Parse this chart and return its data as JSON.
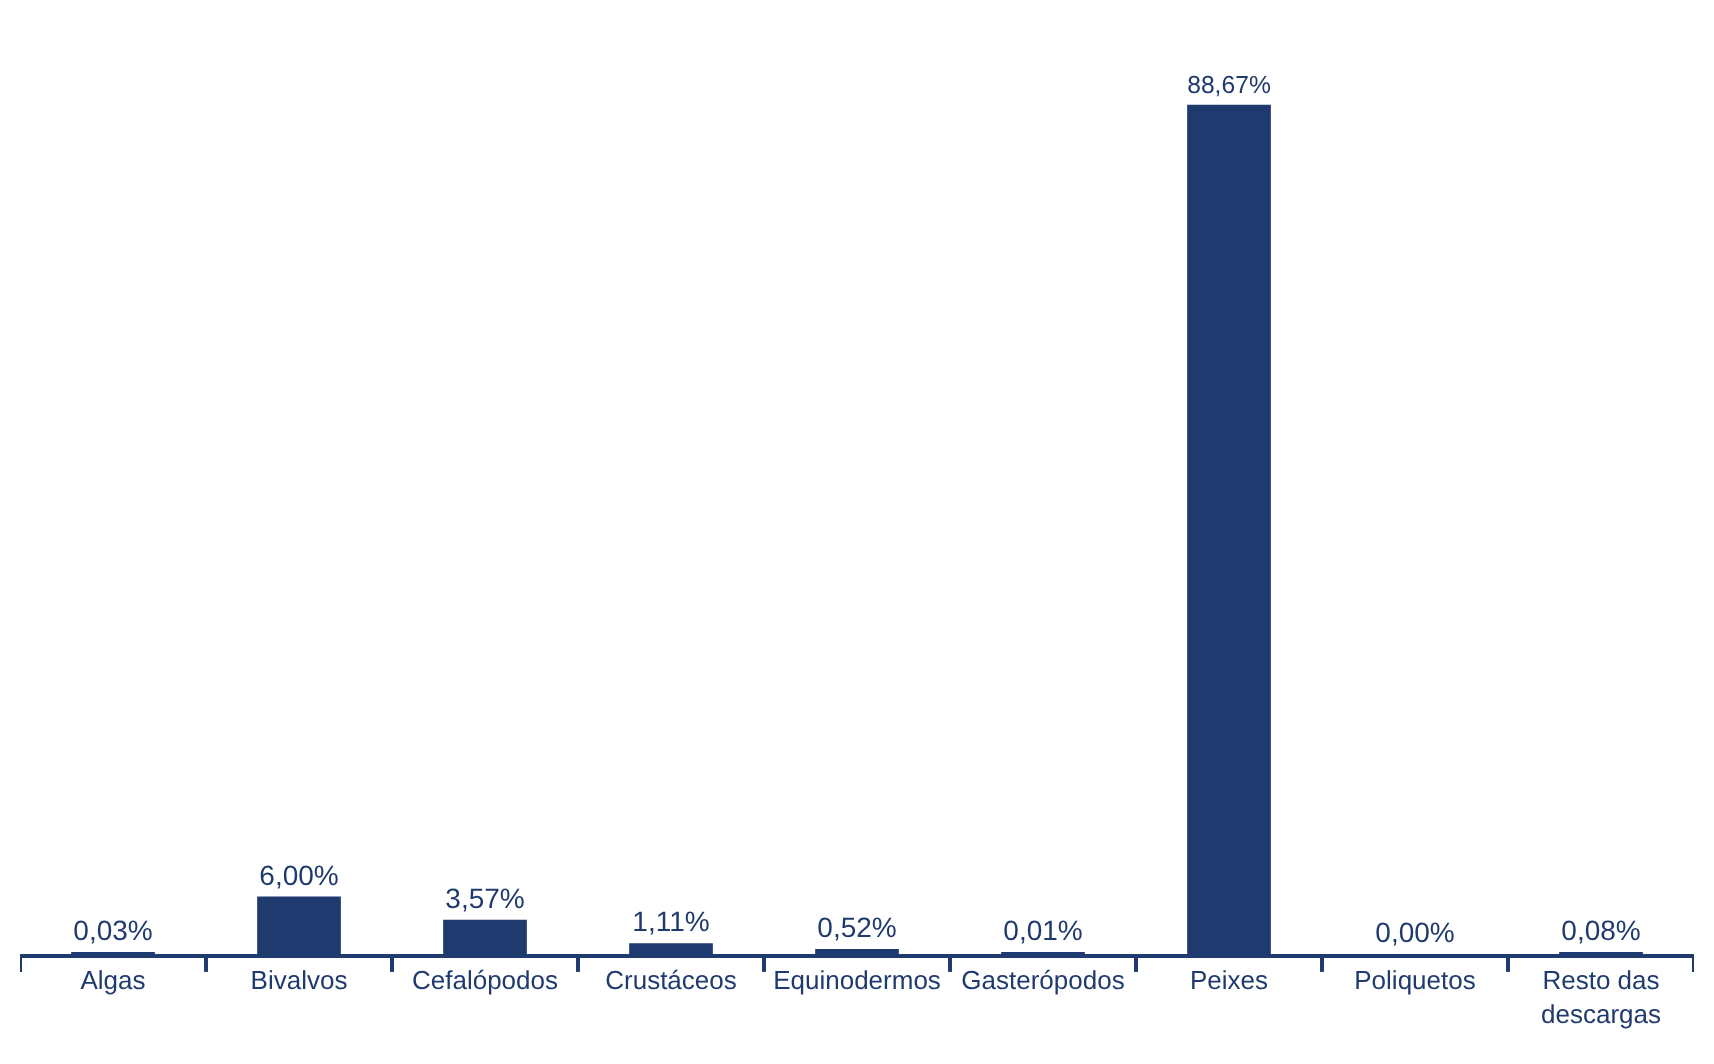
{
  "chart_data": {
    "type": "bar",
    "categories": [
      "Algas",
      "Bivalvos",
      "Cefalópodos",
      "Crustáceos",
      "Equinodermos",
      "Gasterópodos",
      "Peixes",
      "Poliquetos",
      "Resto das descargas"
    ],
    "values": [
      0.03,
      6.0,
      3.57,
      1.11,
      0.52,
      0.01,
      88.67,
      0.0,
      0.08
    ],
    "value_labels": [
      "0,03%",
      "6,00%",
      "3,57%",
      "1,11%",
      "0,52%",
      "0,01%",
      "88,67%",
      "0,00%",
      "0,08%"
    ],
    "color": "#1f3a6e"
  }
}
